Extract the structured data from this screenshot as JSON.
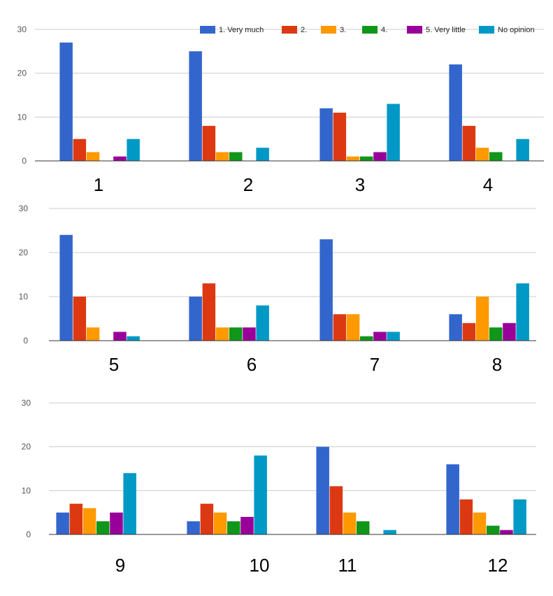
{
  "legend": [
    "1. Very much",
    "2.",
    "3.",
    "4.",
    "5. Very little",
    "No opinion"
  ],
  "colors": [
    "#3366cc",
    "#dc3912",
    "#ff9900",
    "#109618",
    "#990099",
    "#0099c6"
  ],
  "chart_data": [
    {
      "type": "bar",
      "categories": [
        "1",
        "2",
        "3",
        "4"
      ],
      "ylim": [
        0,
        30
      ],
      "yticks": [
        "0",
        "10",
        "20",
        "30"
      ],
      "series": [
        {
          "name": "1. Very much",
          "values": [
            27,
            25,
            12,
            22
          ]
        },
        {
          "name": "2.",
          "values": [
            5,
            8,
            11,
            8
          ]
        },
        {
          "name": "3.",
          "values": [
            2,
            2,
            1,
            3
          ]
        },
        {
          "name": "4.",
          "values": [
            0,
            2,
            1,
            2
          ]
        },
        {
          "name": "5. Very little",
          "values": [
            1,
            0,
            2,
            0
          ]
        },
        {
          "name": "No opinion",
          "values": [
            5,
            3,
            13,
            5
          ]
        }
      ],
      "legend_position": "top-right"
    },
    {
      "type": "bar",
      "categories": [
        "5",
        "6",
        "7",
        "8"
      ],
      "ylim": [
        0,
        30
      ],
      "yticks": [
        "0",
        "10",
        "20",
        "30"
      ],
      "series": [
        {
          "name": "1. Very much",
          "values": [
            24,
            10,
            23,
            6
          ]
        },
        {
          "name": "2.",
          "values": [
            10,
            13,
            6,
            4
          ]
        },
        {
          "name": "3.",
          "values": [
            3,
            3,
            6,
            10
          ]
        },
        {
          "name": "4.",
          "values": [
            0,
            3,
            1,
            3
          ]
        },
        {
          "name": "5. Very little",
          "values": [
            2,
            3,
            2,
            4
          ]
        },
        {
          "name": "No opinion",
          "values": [
            1,
            8,
            2,
            13
          ]
        }
      ]
    },
    {
      "type": "bar",
      "categories": [
        "9",
        "10",
        "11",
        "12"
      ],
      "ylim": [
        0,
        30
      ],
      "yticks": [
        "0",
        "10",
        "20",
        "30"
      ],
      "series": [
        {
          "name": "1. Very much",
          "values": [
            5,
            3,
            20,
            16
          ]
        },
        {
          "name": "2.",
          "values": [
            7,
            7,
            11,
            8
          ]
        },
        {
          "name": "3.",
          "values": [
            6,
            5,
            5,
            5
          ]
        },
        {
          "name": "4.",
          "values": [
            3,
            3,
            3,
            2
          ]
        },
        {
          "name": "5. Very little",
          "values": [
            5,
            4,
            0,
            1
          ]
        },
        {
          "name": "No opinion",
          "values": [
            14,
            18,
            1,
            8
          ]
        }
      ]
    }
  ]
}
